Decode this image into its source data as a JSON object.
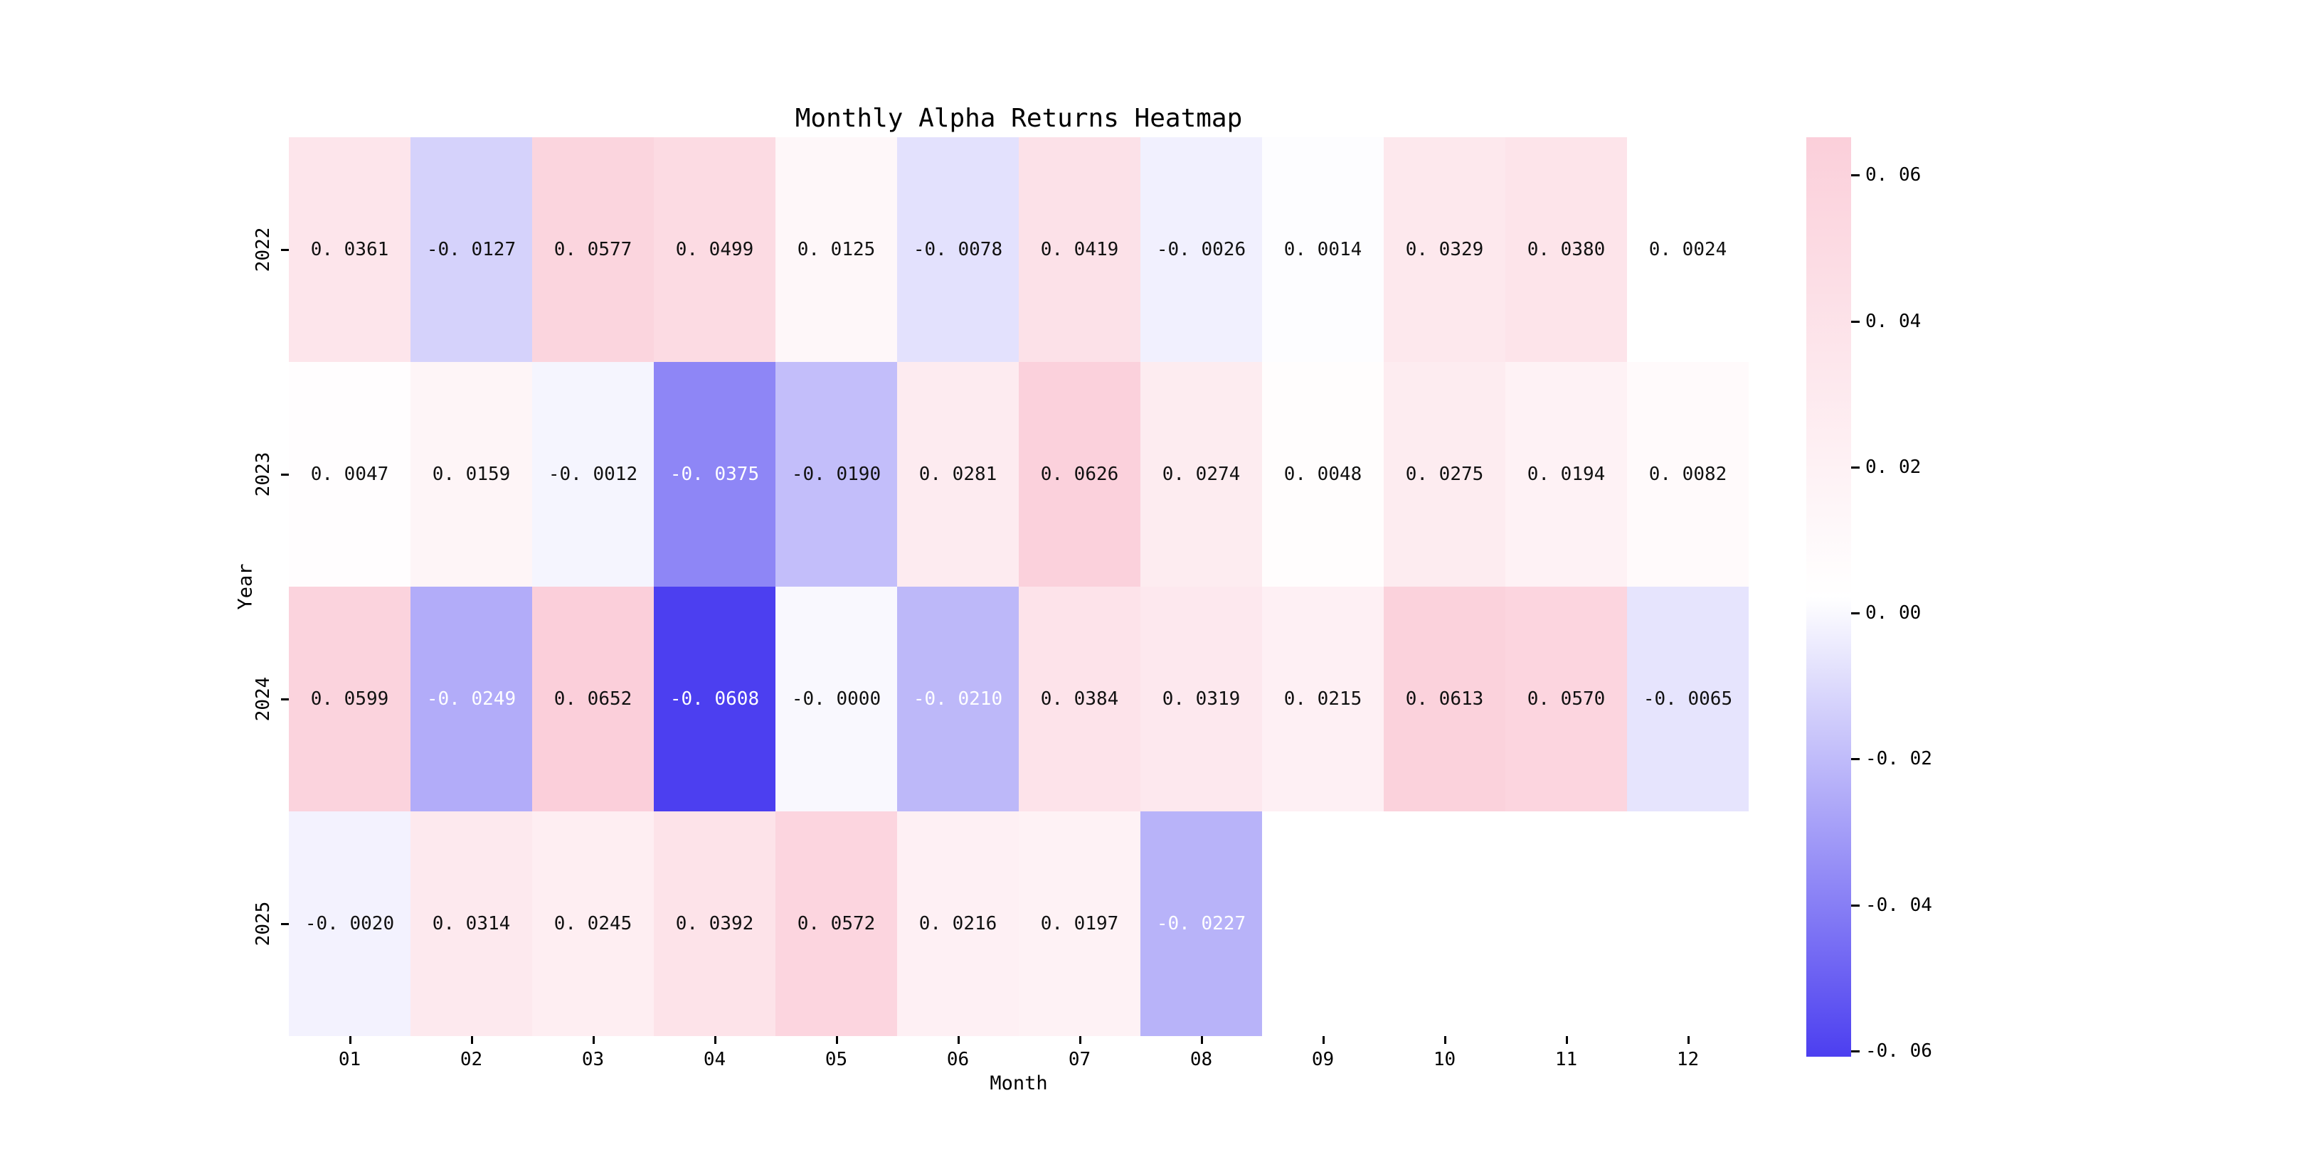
{
  "chart_data": {
    "type": "heatmap",
    "title": "Monthly Alpha Returns Heatmap",
    "xlabel": "Month",
    "ylabel": "Year",
    "x_categories": [
      "01",
      "02",
      "03",
      "04",
      "05",
      "06",
      "07",
      "08",
      "09",
      "10",
      "11",
      "12"
    ],
    "y_categories": [
      "2022",
      "2023",
      "2024",
      "2025"
    ],
    "values": [
      [
        0.0361,
        -0.0127,
        0.0577,
        0.0499,
        0.0125,
        -0.0078,
        0.0419,
        -0.0026,
        0.0014,
        0.0329,
        0.038,
        0.0024
      ],
      [
        0.0047,
        0.0159,
        -0.0012,
        -0.0375,
        -0.019,
        0.0281,
        0.0626,
        0.0274,
        0.0048,
        0.0275,
        0.0194,
        0.0082
      ],
      [
        0.0599,
        -0.0249,
        0.0652,
        -0.0608,
        -0.0,
        -0.021,
        0.0384,
        0.0319,
        0.0215,
        0.0613,
        0.057,
        -0.0065
      ],
      [
        -0.002,
        0.0314,
        0.0245,
        0.0392,
        0.0572,
        0.0216,
        0.0197,
        -0.0227,
        null,
        null,
        null,
        null
      ]
    ],
    "cell_labels": [
      [
        "0.0361",
        "-0.0127",
        "0.0577",
        "0.0499",
        "0.0125",
        "-0.0078",
        "0.0419",
        "-0.0026",
        "0.0014",
        "0.0329",
        "0.0380",
        "0.0024"
      ],
      [
        "0.0047",
        "0.0159",
        "-0.0012",
        "-0.0375",
        "-0.0190",
        "0.0281",
        "0.0626",
        "0.0274",
        "0.0048",
        "0.0275",
        "0.0194",
        "0.0082"
      ],
      [
        "0.0599",
        "-0.0249",
        "0.0652",
        "-0.0608",
        "-0.0000",
        "-0.0210",
        "0.0384",
        "0.0319",
        "0.0215",
        "0.0613",
        "0.0570",
        "-0.0065"
      ],
      [
        "-0.0020",
        "0.0314",
        "0.0245",
        "0.0392",
        "0.0572",
        "0.0216",
        "0.0197",
        "-0.0227",
        null,
        null,
        null,
        null
      ]
    ],
    "vmin": -0.0608,
    "vmax": 0.0652,
    "colorbar_ticks": [
      0.06,
      0.04,
      0.02,
      0.0,
      -0.02,
      -0.04,
      -0.06
    ],
    "legend_position": "right",
    "grid": false,
    "colors": {
      "positive_end": "#FBCFDA",
      "midpoint": "#FFFFFF",
      "negative_end": "#4C3FF0",
      "cell_text_dark": "#111111",
      "cell_text_light": "#FFFFFF",
      "axis_text": "#000000",
      "background": "#FFFFFF"
    },
    "white_text_threshold": -0.02
  }
}
